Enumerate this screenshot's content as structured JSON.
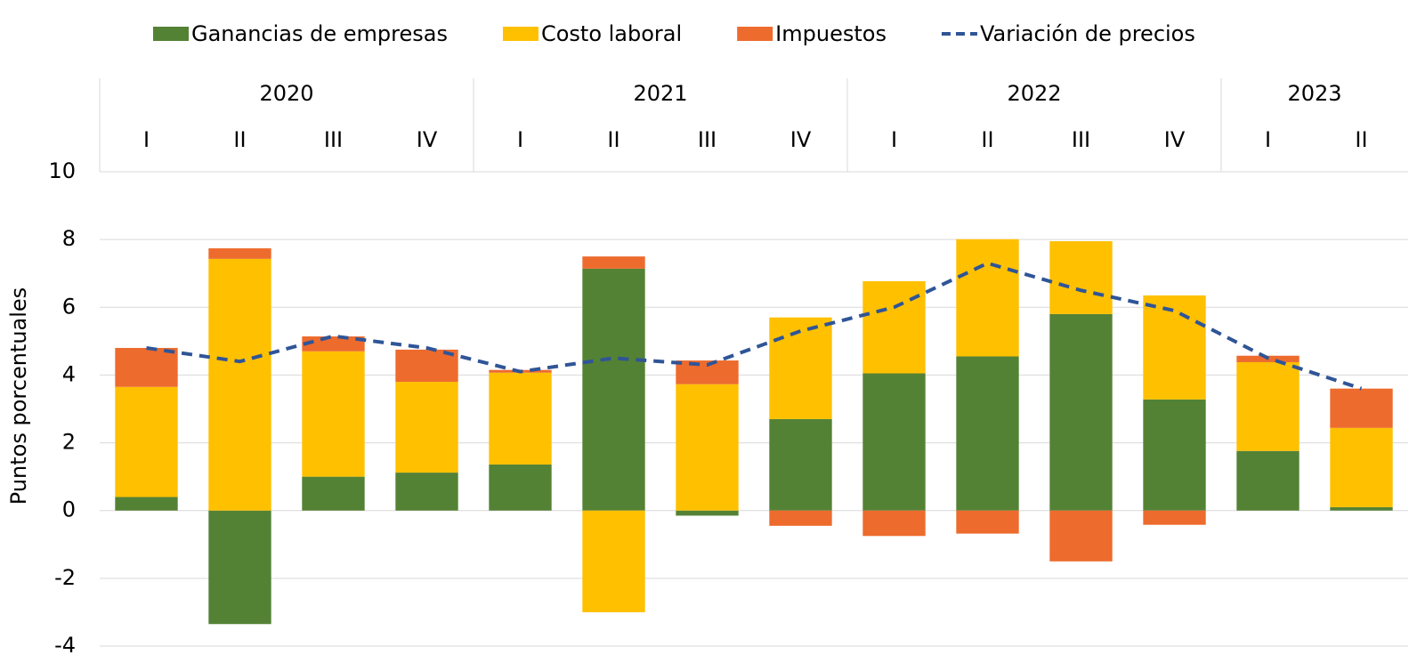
{
  "chart_data": {
    "type": "stacked_bar_line",
    "y_label": "Puntos porcentuales",
    "categories": [
      "I",
      "II",
      "III",
      "IV",
      "I",
      "II",
      "III",
      "IV",
      "I",
      "II",
      "III",
      "IV",
      "I",
      "II"
    ],
    "years": [
      "2020",
      null,
      null,
      null,
      "2021",
      null,
      null,
      null,
      "2022",
      null,
      null,
      null,
      "2023",
      null
    ],
    "series": [
      {
        "name": "Ganancias de empresas",
        "color": "#548235",
        "kind": "bar",
        "values": [
          0.4,
          -3.35,
          1.0,
          1.12,
          1.36,
          7.14,
          -0.15,
          2.7,
          4.05,
          4.55,
          5.8,
          3.28,
          1.76,
          0.1
        ]
      },
      {
        "name": "Costo laboral",
        "color": "#ffc000",
        "kind": "bar",
        "values": [
          3.25,
          7.43,
          3.7,
          2.68,
          2.71,
          -3.0,
          3.73,
          3.0,
          2.72,
          3.46,
          2.15,
          3.07,
          2.62,
          2.34
        ]
      },
      {
        "name": "Impuestos",
        "color": "#ed6b2d",
        "kind": "bar",
        "values": [
          1.15,
          0.31,
          0.44,
          0.95,
          0.08,
          0.36,
          0.7,
          -0.45,
          -0.75,
          -0.68,
          -1.5,
          -0.42,
          0.19,
          1.16
        ]
      },
      {
        "name": "Variación de precios",
        "color": "#2f5597",
        "kind": "line",
        "dashed": true,
        "values": [
          4.8,
          4.4,
          5.15,
          4.8,
          4.1,
          4.5,
          4.3,
          5.3,
          6.0,
          7.3,
          6.5,
          5.9,
          4.5,
          3.6
        ]
      }
    ],
    "ylim": [
      -4,
      10
    ],
    "yticks": [
      -4,
      -2,
      0,
      2,
      4,
      6,
      8,
      10
    ],
    "grid": true,
    "legend": "top"
  }
}
